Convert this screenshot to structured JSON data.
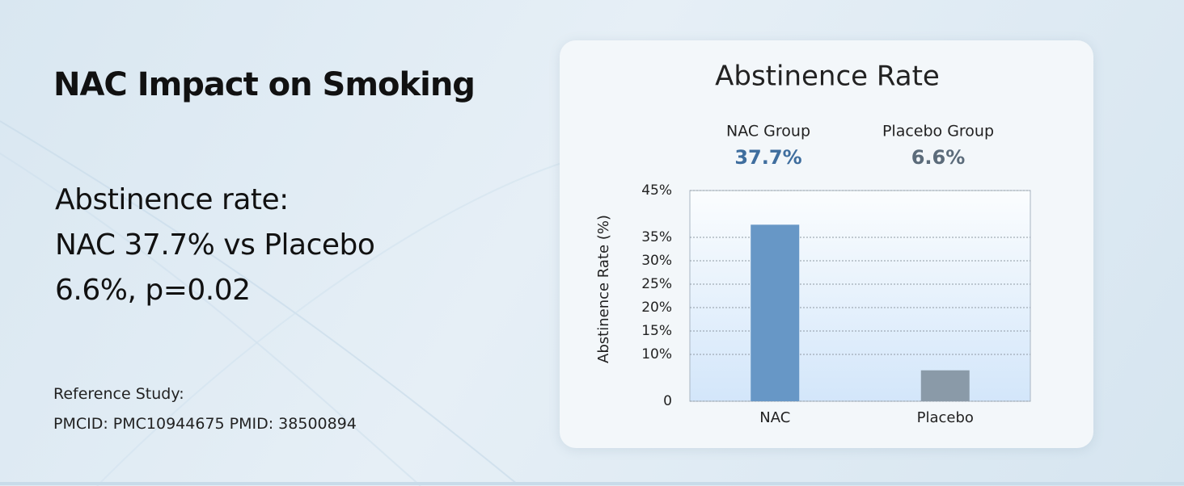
{
  "title": "NAC Impact on Smoking",
  "summary": [
    "Abstinence rate:",
    "NAC 37.7% vs Placebo",
    "6.6%, p=0.02"
  ],
  "reference": [
    "Reference Study:",
    "PMCID: PMC10944675 PMID: 38500894"
  ],
  "chart_data": {
    "type": "bar",
    "title": "Abstinence Rate",
    "y_label": "Abstinence Rate (%)",
    "categories": [
      "NAC",
      "Placebo"
    ],
    "group_labels": [
      "NAC Group",
      "Placebo Group"
    ],
    "values": [
      37.7,
      6.6
    ],
    "value_labels": [
      "37.7%",
      "6.6%"
    ],
    "colors": [
      "#6797c6",
      "#8a9aa8"
    ],
    "ylim": [
      0,
      45
    ],
    "yticks": [
      0,
      {
        "value": 10,
        "label": "10%"
      },
      {
        "value": 15,
        "label": "15%"
      },
      {
        "value": 20,
        "label": "20%"
      },
      {
        "value": 25,
        "label": "25%"
      },
      {
        "value": 30,
        "label": "30%"
      },
      {
        "value": 35,
        "label": "35%"
      },
      {
        "value": 45,
        "label": "45%"
      }
    ],
    "grid": true
  }
}
